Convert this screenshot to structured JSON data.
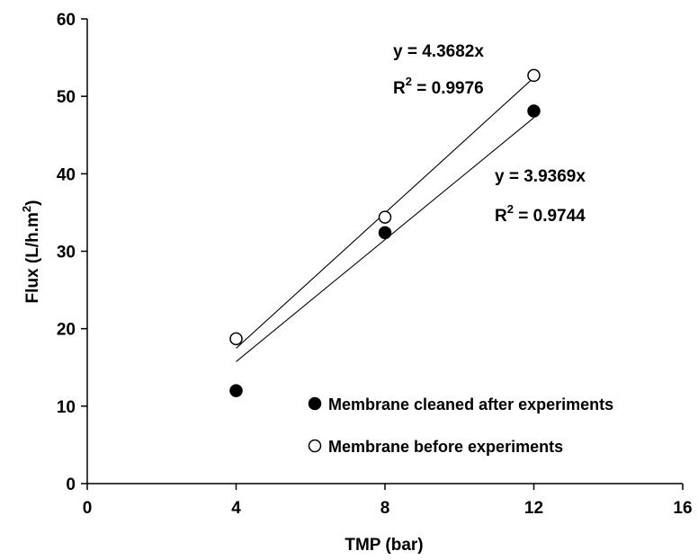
{
  "chart_data": {
    "type": "scatter",
    "xlabel": "TMP (bar)",
    "ylabel_main": "Flux (L/h.m",
    "ylabel_sup": "2",
    "ylabel_close": ")",
    "xlim": [
      0,
      16
    ],
    "ylim": [
      0,
      60
    ],
    "xticks": [
      0,
      4,
      8,
      12,
      16
    ],
    "yticks": [
      0,
      10,
      20,
      30,
      40,
      50,
      60
    ],
    "grid": false,
    "legend_position": "bottom-right",
    "series": [
      {
        "name": "Membrane cleaned after experiments",
        "marker": "filled-circle",
        "x": [
          4,
          8,
          12
        ],
        "y": [
          12.0,
          32.4,
          48.1
        ],
        "trendline": {
          "slope": 3.9369,
          "equation": "y = 3.9369x",
          "r2_prefix": "R",
          "r2_sup": "2",
          "r2_value": " = 0.9744"
        }
      },
      {
        "name": "Membrane before experiments",
        "marker": "open-circle",
        "x": [
          4,
          8,
          12
        ],
        "y": [
          18.7,
          34.4,
          52.7
        ],
        "trendline": {
          "slope": 4.3682,
          "equation": "y = 4.3682x",
          "r2_prefix": "R",
          "r2_sup": "2",
          "r2_value": " = 0.9976"
        }
      }
    ]
  }
}
